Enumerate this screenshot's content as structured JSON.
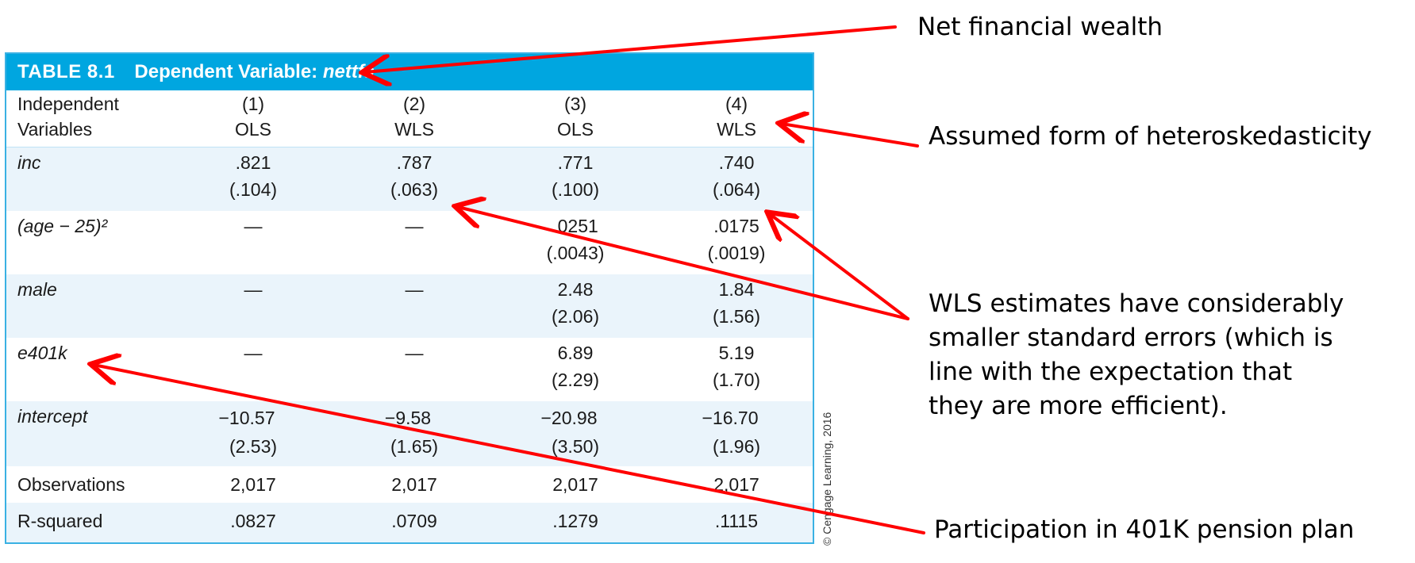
{
  "table": {
    "number": "TABLE 8.1",
    "title_prefix": "Dependent Variable:",
    "title_var": "nettfa",
    "header": {
      "label_line1": "Independent",
      "label_line2": "Variables",
      "columns": [
        {
          "num": "(1)",
          "method": "OLS"
        },
        {
          "num": "(2)",
          "method": "WLS"
        },
        {
          "num": "(3)",
          "method": "OLS"
        },
        {
          "num": "(4)",
          "method": "WLS"
        }
      ]
    },
    "rows": [
      {
        "label": "inc",
        "coef": [
          ".821",
          ".787",
          ".771",
          ".740"
        ],
        "se": [
          "(.104)",
          "(.063)",
          "(.100)",
          "(.064)"
        ]
      },
      {
        "label": "(age − 25)²",
        "coef": [
          "—",
          "—",
          ".0251",
          ".0175"
        ],
        "se": [
          "",
          "",
          "(.0043)",
          "(.0019)"
        ]
      },
      {
        "label": "male",
        "coef": [
          "—",
          "—",
          "2.48",
          "1.84"
        ],
        "se": [
          "",
          "",
          "(2.06)",
          "(1.56)"
        ]
      },
      {
        "label": "e401k",
        "coef": [
          "—",
          "—",
          "6.89",
          "5.19"
        ],
        "se": [
          "",
          "",
          "(2.29)",
          "(1.70)"
        ]
      },
      {
        "label": "intercept",
        "coef": [
          "−10.57",
          "−9.58",
          "−20.98",
          "−16.70"
        ],
        "se": [
          "(2.53)",
          "(1.65)",
          "(3.50)",
          "(1.96)"
        ]
      }
    ],
    "observations": {
      "label": "Observations",
      "values": [
        "2,017",
        "2,017",
        "2,017",
        "2,017"
      ]
    },
    "rsquared": {
      "label": "R-squared",
      "values": [
        ".0827",
        ".0709",
        ".1279",
        ".1115"
      ]
    },
    "credit": "© Cengage Learning, 2016"
  },
  "annotations": {
    "net_wealth": "Net financial wealth",
    "hetero": "Assumed form of heteroskedasticity",
    "wls_line1": "WLS estimates have considerably",
    "wls_line2": "smaller standard errors (which is",
    "wls_line3": "line with the expectation that",
    "wls_line4": "they are more efficient).",
    "participation": "Participation in 401K pension plan"
  },
  "colors": {
    "header_bg": "#00a6e0",
    "row_shade": "#eaf4fb",
    "arrow": "#ff0000"
  }
}
